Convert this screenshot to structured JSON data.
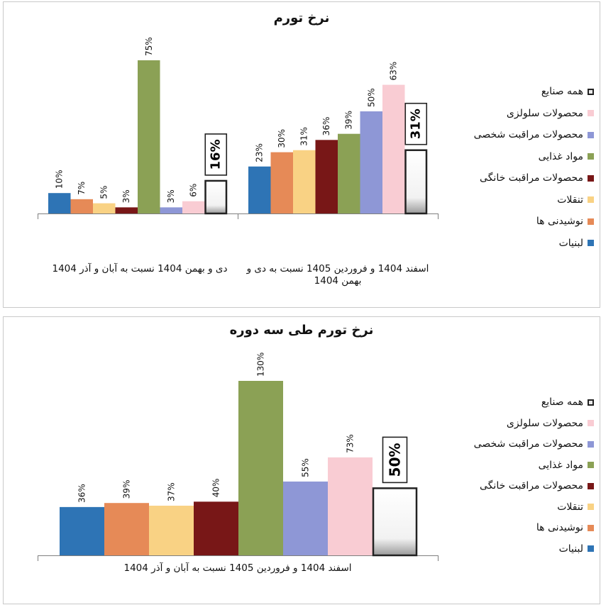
{
  "charts": [
    {
      "title": "نرخ تورم",
      "categories": [
        "دی و بهمن 1404 نسبت به آبان و آذر 1404",
        "اسفند 1404 و فروردین 1405 نسبت به دی و بهمن 1404"
      ]
    },
    {
      "title": "نرخ تورم طی سه دوره",
      "categories": [
        "اسفند 1404 و فروردین 1405 نسبت به آبان و آذر 1404"
      ]
    }
  ],
  "legend": [
    {
      "label": "همه صنایع",
      "color": "#e8e8e8",
      "boxed": true
    },
    {
      "label": "محصولات سلولزی",
      "color": "#f9ccd3"
    },
    {
      "label": "محصولات مراقبت شخصی",
      "color": "#8e97d6"
    },
    {
      "label": "مواد غذایی",
      "color": "#8ba155"
    },
    {
      "label": "محصولات مراقبت خانگی",
      "color": "#781717"
    },
    {
      "label": "تنقلات",
      "color": "#f9d284"
    },
    {
      "label": "نوشیدنی ها",
      "color": "#e68a57"
    },
    {
      "label": "لبنیات",
      "color": "#2e74b5"
    }
  ],
  "chart_data": [
    {
      "type": "bar",
      "title": "نرخ تورم",
      "categories": [
        "دی و بهمن 1404 نسبت به آبان و آذر 1404",
        "اسفند 1404 و فروردین 1405 نسبت به دی و بهمن 1404"
      ],
      "series": [
        {
          "name": "لبنیات",
          "values": [
            10,
            23
          ],
          "color": "#2e74b5"
        },
        {
          "name": "نوشیدنی ها",
          "values": [
            7,
            30
          ],
          "color": "#e68a57"
        },
        {
          "name": "تنقلات",
          "values": [
            5,
            31
          ],
          "color": "#f9d284"
        },
        {
          "name": "محصولات مراقبت خانگی",
          "values": [
            3,
            36
          ],
          "color": "#781717"
        },
        {
          "name": "مواد غذایی",
          "values": [
            75,
            39
          ],
          "color": "#8ba155"
        },
        {
          "name": "محصولات مراقبت شخصی",
          "values": [
            3,
            50
          ],
          "color": "#8e97d6"
        },
        {
          "name": "محصولات سلولزی",
          "values": [
            6,
            63
          ],
          "color": "#f9ccd3"
        },
        {
          "name": "همه صنایع",
          "values": [
            16,
            31
          ],
          "color": "#ffffff",
          "highlight": true
        }
      ],
      "ylim": [
        0,
        75
      ],
      "value_suffix": "%",
      "legend_position": "right"
    },
    {
      "type": "bar",
      "title": "نرخ تورم طی سه دوره",
      "categories": [
        "اسفند 1404 و فروردین 1405 نسبت به آبان و آذر 1404"
      ],
      "series": [
        {
          "name": "لبنیات",
          "values": [
            36
          ],
          "color": "#2e74b5"
        },
        {
          "name": "نوشیدنی ها",
          "values": [
            39
          ],
          "color": "#e68a57"
        },
        {
          "name": "تنقلات",
          "values": [
            37
          ],
          "color": "#f9d284"
        },
        {
          "name": "محصولات مراقبت خانگی",
          "values": [
            40
          ],
          "color": "#781717"
        },
        {
          "name": "مواد غذایی",
          "values": [
            130
          ],
          "color": "#8ba155"
        },
        {
          "name": "محصولات مراقبت شخصی",
          "values": [
            55
          ],
          "color": "#8e97d6"
        },
        {
          "name": "محصولات سلولزی",
          "values": [
            73
          ],
          "color": "#f9ccd3"
        },
        {
          "name": "همه صنایع",
          "values": [
            50
          ],
          "color": "#ffffff",
          "highlight": true
        }
      ],
      "ylim": [
        0,
        130
      ],
      "value_suffix": "%",
      "legend_position": "right"
    }
  ]
}
